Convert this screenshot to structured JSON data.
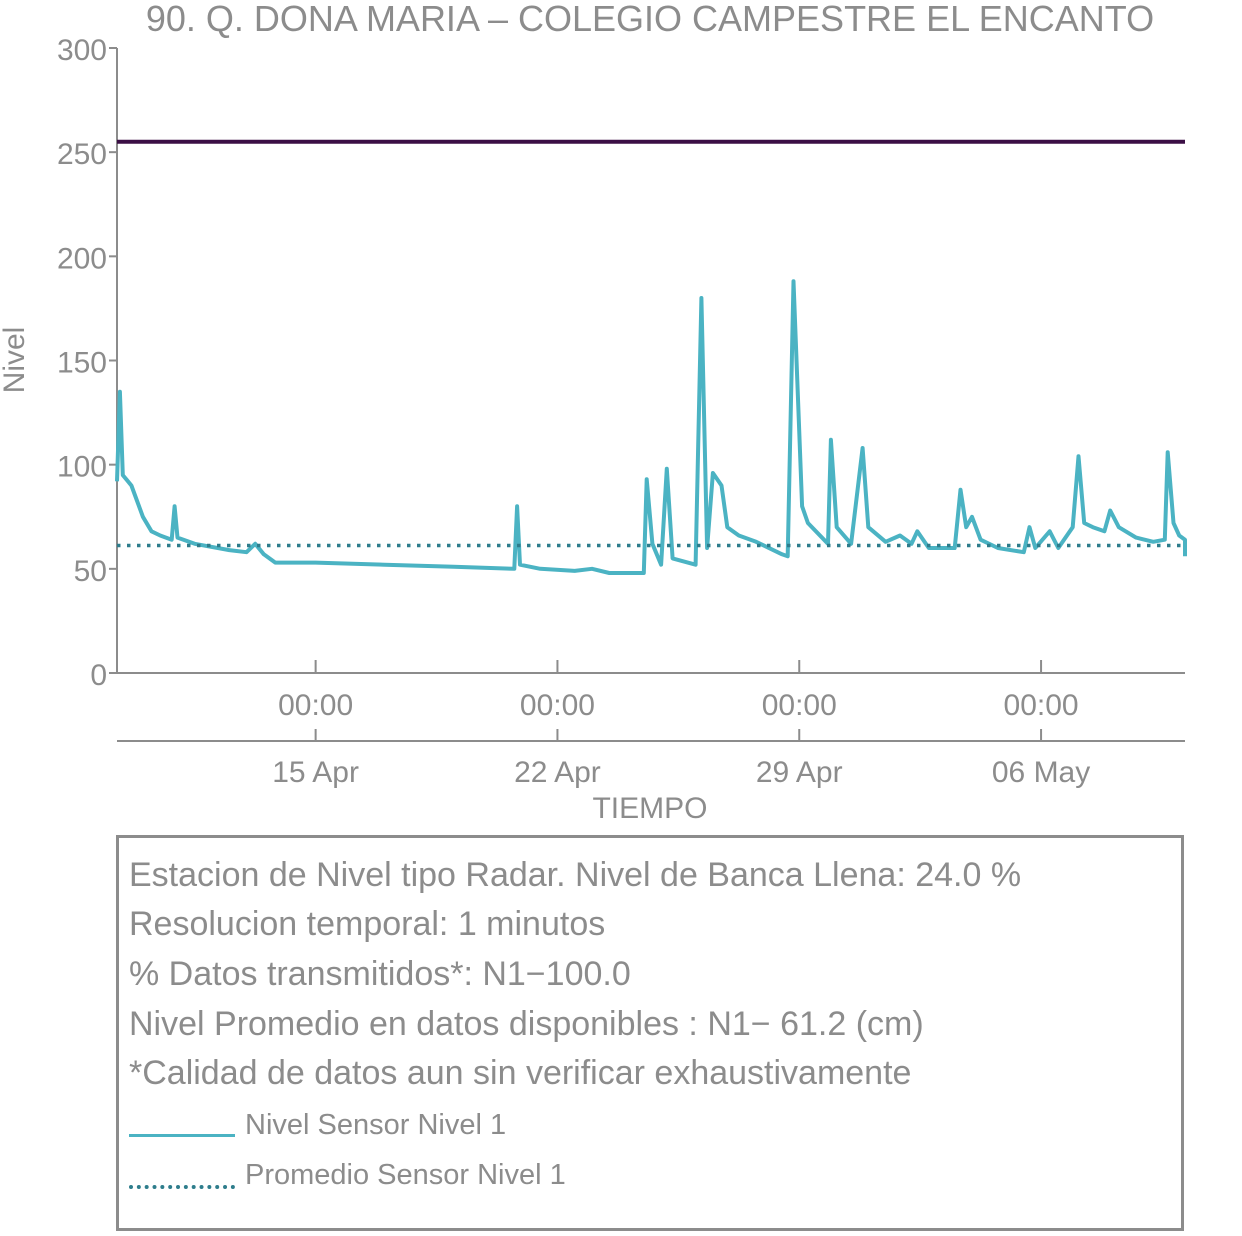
{
  "chart_data": {
    "type": "line",
    "title": "90. Q. DONA MARIA – COLEGIO CAMPESTRE EL ENCANTO",
    "xlabel": "TIEMPO",
    "ylabel": "Nivel",
    "ylim": [
      0,
      300
    ],
    "yticks": [
      "0",
      "50",
      "100",
      "150",
      "200",
      "250",
      "300"
    ],
    "xlim": [
      "2019-04-09T06:00",
      "2019-05-10T04:00"
    ],
    "xticks": [
      {
        "date": "2019-04-15T00:00",
        "time_label": "00:00",
        "date_label": "15 Apr"
      },
      {
        "date": "2019-04-22T00:00",
        "time_label": "00:00",
        "date_label": "22 Apr"
      },
      {
        "date": "2019-04-29T00:00",
        "time_label": "00:00",
        "date_label": "29 Apr"
      },
      {
        "date": "2019-05-06T00:00",
        "time_label": "00:00",
        "date_label": "06 May"
      }
    ],
    "bankfull_level": 255,
    "bankfull_color": "#3b0f45",
    "series": [
      {
        "name": "Nivel Sensor Nivel 1",
        "color": "#4bb3c3",
        "style": "solid",
        "points": [
          [
            "2019-04-09T06:00",
            92
          ],
          [
            "2019-04-09T08:00",
            135
          ],
          [
            "2019-04-09T10:00",
            95
          ],
          [
            "2019-04-09T16:00",
            90
          ],
          [
            "2019-04-10T00:00",
            75
          ],
          [
            "2019-04-10T06:00",
            68
          ],
          [
            "2019-04-10T12:00",
            66
          ],
          [
            "2019-04-10T20:00",
            64
          ],
          [
            "2019-04-10T22:00",
            80
          ],
          [
            "2019-04-11T00:00",
            65
          ],
          [
            "2019-04-11T12:00",
            62
          ],
          [
            "2019-04-12T12:00",
            59
          ],
          [
            "2019-04-13T00:00",
            58
          ],
          [
            "2019-04-13T06:00",
            62
          ],
          [
            "2019-04-13T12:00",
            57
          ],
          [
            "2019-04-13T20:00",
            53
          ],
          [
            "2019-04-15T00:00",
            53
          ],
          [
            "2019-04-17T00:00",
            52
          ],
          [
            "2019-04-19T00:00",
            51
          ],
          [
            "2019-04-20T18:00",
            50
          ],
          [
            "2019-04-20T20:00",
            80
          ],
          [
            "2019-04-20T22:00",
            52
          ],
          [
            "2019-04-21T12:00",
            50
          ],
          [
            "2019-04-22T12:00",
            49
          ],
          [
            "2019-04-23T00:00",
            50
          ],
          [
            "2019-04-23T12:00",
            48
          ],
          [
            "2019-04-24T12:00",
            48
          ],
          [
            "2019-04-24T14:00",
            93
          ],
          [
            "2019-04-24T18:00",
            62
          ],
          [
            "2019-04-25T00:00",
            52
          ],
          [
            "2019-04-25T04:00",
            98
          ],
          [
            "2019-04-25T08:00",
            55
          ],
          [
            "2019-04-26T00:00",
            52
          ],
          [
            "2019-04-26T04:00",
            180
          ],
          [
            "2019-04-26T08:00",
            60
          ],
          [
            "2019-04-26T12:00",
            96
          ],
          [
            "2019-04-26T18:00",
            90
          ],
          [
            "2019-04-26T22:00",
            70
          ],
          [
            "2019-04-27T06:00",
            66
          ],
          [
            "2019-04-27T18:00",
            63
          ],
          [
            "2019-04-28T12:00",
            57
          ],
          [
            "2019-04-28T16:00",
            56
          ],
          [
            "2019-04-28T20:00",
            188
          ],
          [
            "2019-04-29T02:00",
            80
          ],
          [
            "2019-04-29T06:00",
            72
          ],
          [
            "2019-04-29T20:00",
            62
          ],
          [
            "2019-04-29T22:00",
            112
          ],
          [
            "2019-04-30T02:00",
            70
          ],
          [
            "2019-04-30T12:00",
            62
          ],
          [
            "2019-04-30T20:00",
            108
          ],
          [
            "2019-05-01T00:00",
            70
          ],
          [
            "2019-05-01T12:00",
            63
          ],
          [
            "2019-05-01T22:00",
            66
          ],
          [
            "2019-05-02T06:00",
            62
          ],
          [
            "2019-05-02T10:00",
            68
          ],
          [
            "2019-05-02T18:00",
            60
          ],
          [
            "2019-05-03T12:00",
            60
          ],
          [
            "2019-05-03T16:00",
            88
          ],
          [
            "2019-05-03T20:00",
            70
          ],
          [
            "2019-05-04T00:00",
            75
          ],
          [
            "2019-05-04T06:00",
            64
          ],
          [
            "2019-05-04T18:00",
            60
          ],
          [
            "2019-05-05T12:00",
            58
          ],
          [
            "2019-05-05T16:00",
            70
          ],
          [
            "2019-05-05T20:00",
            60
          ],
          [
            "2019-05-06T06:00",
            68
          ],
          [
            "2019-05-06T12:00",
            60
          ],
          [
            "2019-05-06T22:00",
            70
          ],
          [
            "2019-05-07T02:00",
            104
          ],
          [
            "2019-05-07T06:00",
            72
          ],
          [
            "2019-05-07T12:00",
            70
          ],
          [
            "2019-05-07T20:00",
            68
          ],
          [
            "2019-05-08T00:00",
            78
          ],
          [
            "2019-05-08T06:00",
            70
          ],
          [
            "2019-05-08T18:00",
            65
          ],
          [
            "2019-05-09T06:00",
            63
          ],
          [
            "2019-05-09T14:00",
            64
          ],
          [
            "2019-05-09T16:00",
            106
          ],
          [
            "2019-05-09T20:00",
            72
          ],
          [
            "2019-05-10T00:00",
            66
          ],
          [
            "2019-05-10T06:00",
            64
          ],
          [
            "2019-05-10T14:00",
            64
          ],
          [
            "2019-05-10T18:00",
            60
          ],
          [
            "2019-05-11T00:00",
            58
          ],
          [
            "2019-05-11T06:00",
            56
          ]
        ]
      },
      {
        "name": "Promedio Sensor Nivel 1",
        "color": "#2e7d8c",
        "style": "dotted",
        "value": 61.2
      }
    ]
  },
  "info": {
    "line1": "Estacion de Nivel tipo Radar. Nivel de Banca Llena: 24.0 %",
    "line2": "Resolucion temporal: 1 minutos",
    "line3": "% Datos transmitidos*: N1−100.0",
    "line4": "Nivel Promedio en datos disponibles : N1− 61.2 (cm)",
    "line5": "*Calidad de datos aun sin verificar exhaustivamente"
  },
  "legend": {
    "item1": "Nivel Sensor Nivel 1",
    "item2": "Promedio Sensor Nivel 1"
  }
}
